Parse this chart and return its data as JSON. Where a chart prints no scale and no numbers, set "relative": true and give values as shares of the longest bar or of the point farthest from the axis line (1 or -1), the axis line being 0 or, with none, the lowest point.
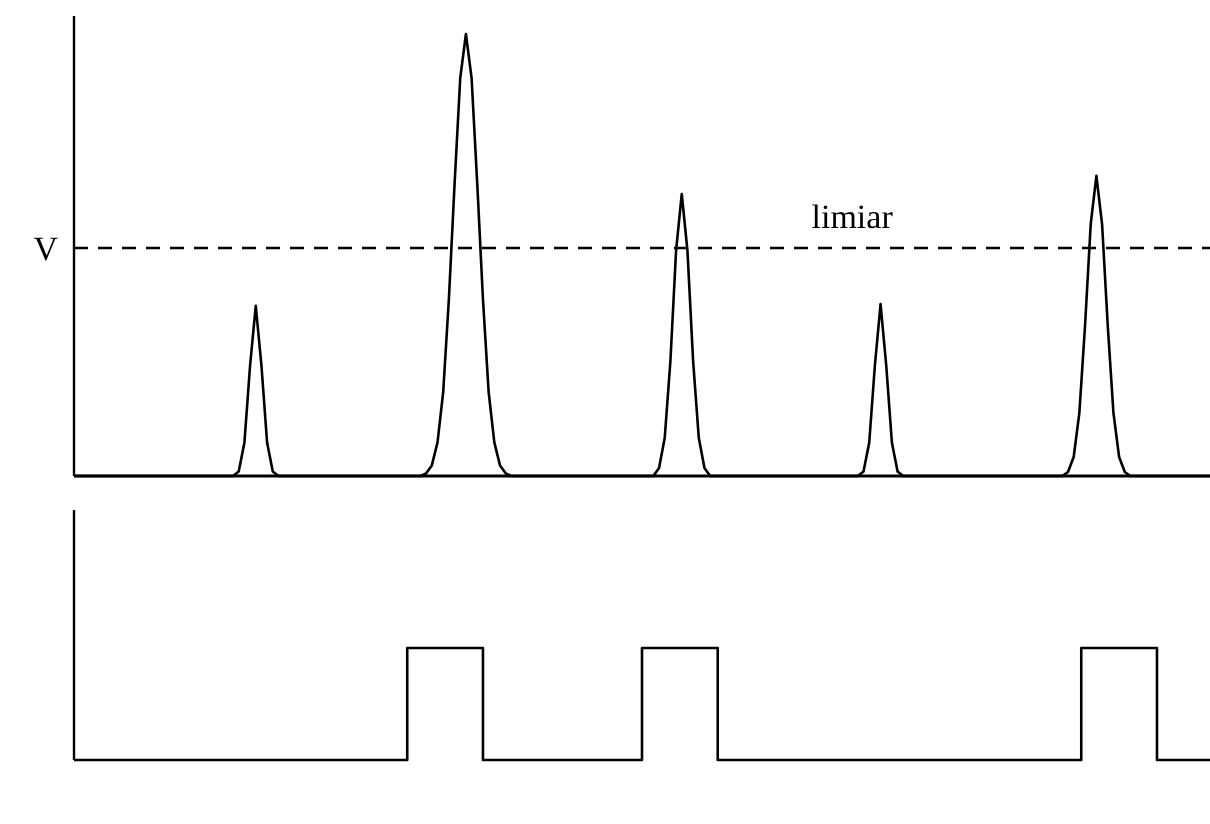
{
  "chart_data": [
    {
      "type": "line",
      "relative": true,
      "categories": [
        null,
        null,
        null,
        null,
        null,
        null,
        null,
        null,
        null,
        null,
        null,
        null,
        null,
        null,
        null,
        null,
        null,
        null,
        null,
        null,
        null,
        null,
        null,
        null,
        null,
        null,
        null,
        null,
        null,
        null,
        null,
        null,
        null,
        null,
        null,
        null,
        null,
        null,
        null,
        null,
        null,
        null,
        null,
        null,
        null,
        null,
        null,
        null,
        null,
        null,
        null,
        null,
        null,
        null,
        null,
        null,
        null,
        null,
        null,
        null,
        null,
        null,
        null,
        null,
        null,
        null,
        null,
        null,
        null,
        null,
        null,
        null,
        null,
        null,
        null,
        null,
        null,
        null,
        null,
        null,
        null,
        null,
        null,
        null,
        null,
        null,
        null,
        null,
        null,
        null,
        null,
        null,
        null,
        null,
        null,
        null,
        null,
        null,
        null,
        null,
        null,
        null,
        null,
        null,
        null,
        null,
        null,
        null,
        null,
        null,
        null,
        null,
        null,
        null,
        null,
        null,
        null,
        null,
        null,
        null,
        null,
        null,
        null,
        null,
        null,
        null,
        null,
        null,
        null,
        null,
        null,
        null,
        null,
        null,
        null,
        null,
        null,
        null,
        null,
        null,
        null,
        null,
        null,
        null,
        null,
        null,
        null,
        null,
        null,
        null,
        null,
        null,
        null,
        null,
        null,
        null,
        null,
        null,
        null,
        null,
        null,
        null,
        null,
        null,
        null,
        null,
        null,
        null,
        null,
        null,
        null,
        null,
        null,
        null,
        null,
        null,
        null,
        null,
        null,
        null,
        null,
        null,
        null,
        null,
        null,
        null,
        null,
        null,
        null,
        null,
        null,
        null,
        null,
        null,
        null,
        null,
        null,
        null,
        null,
        null,
        null
      ],
      "series": [
        {
          "color": "#000000",
          "values": [
            0,
            0,
            0,
            0,
            0,
            0,
            0,
            0,
            0,
            0,
            0,
            0,
            0,
            0,
            0,
            0,
            0,
            0,
            0,
            0,
            0,
            0,
            0,
            0,
            0,
            0,
            0,
            0,
            0,
            0.01,
            0.075,
            0.25,
            0.385,
            0.25,
            0.075,
            0.01,
            0,
            0,
            0,
            0,
            0,
            0,
            0,
            0,
            0,
            0,
            0,
            0,
            0,
            0,
            0,
            0,
            0,
            0,
            0,
            0,
            0,
            0,
            0,
            0,
            0,
            0,
            0.006,
            0.024,
            0.076,
            0.19,
            0.4,
            0.66,
            0.9,
            1,
            0.9,
            0.66,
            0.4,
            0.19,
            0.076,
            0.024,
            0.006,
            0,
            0,
            0,
            0,
            0,
            0,
            0,
            0,
            0,
            0,
            0,
            0,
            0,
            0,
            0,
            0,
            0,
            0,
            0,
            0,
            0,
            0,
            0,
            0,
            0,
            0,
            0.018,
            0.086,
            0.26,
            0.51,
            0.638,
            0.51,
            0.26,
            0.086,
            0.018,
            0,
            0,
            0,
            0,
            0,
            0,
            0,
            0,
            0,
            0,
            0,
            0,
            0,
            0,
            0,
            0,
            0,
            0,
            0,
            0,
            0,
            0,
            0,
            0,
            0,
            0,
            0,
            0.01,
            0.075,
            0.25,
            0.389,
            0.25,
            0.075,
            0.01,
            0,
            0,
            0,
            0,
            0,
            0,
            0,
            0,
            0,
            0,
            0,
            0,
            0,
            0,
            0,
            0,
            0,
            0,
            0,
            0,
            0,
            0,
            0,
            0,
            0,
            0,
            0,
            0,
            0,
            0.009,
            0.043,
            0.143,
            0.34,
            0.57,
            0.679,
            0.57,
            0.34,
            0.143,
            0.043,
            0.009,
            0,
            0,
            0,
            0,
            0,
            0,
            0,
            0,
            0,
            0,
            0,
            0,
            0,
            0,
            0
          ]
        }
      ],
      "ref_lines": [
        {
          "axis": "y",
          "value": 0.516,
          "label": "V",
          "line_style": "dashed",
          "color": "#000000"
        }
      ],
      "annotations": [
        {
          "text": "limiar",
          "y": 0.516
        }
      ]
    },
    {
      "type": "step",
      "relative": true,
      "categories": [
        null,
        null,
        null,
        null,
        null,
        null,
        null,
        null,
        null,
        null,
        null,
        null,
        null,
        null,
        null,
        null,
        null,
        null,
        null,
        null,
        null,
        null,
        null,
        null,
        null,
        null,
        null,
        null,
        null,
        null,
        null,
        null,
        null,
        null,
        null,
        null,
        null,
        null,
        null,
        null,
        null,
        null,
        null,
        null,
        null,
        null,
        null,
        null,
        null,
        null,
        null,
        null,
        null,
        null,
        null,
        null,
        null,
        null,
        null,
        null,
        null,
        null,
        null,
        null,
        null,
        null,
        null,
        null,
        null,
        null,
        null,
        null,
        null,
        null,
        null,
        null,
        null,
        null,
        null,
        null,
        null,
        null,
        null,
        null,
        null,
        null,
        null,
        null,
        null,
        null,
        null,
        null,
        null,
        null,
        null,
        null,
        null,
        null,
        null,
        null,
        null,
        null,
        null,
        null,
        null,
        null,
        null,
        null,
        null,
        null,
        null,
        null,
        null,
        null,
        null,
        null,
        null,
        null,
        null,
        null,
        null,
        null,
        null,
        null,
        null,
        null,
        null,
        null,
        null,
        null,
        null,
        null,
        null,
        null,
        null,
        null,
        null,
        null,
        null,
        null,
        null,
        null,
        null,
        null,
        null,
        null,
        null,
        null,
        null,
        null,
        null
      ],
      "series": [
        {
          "color": "#000000",
          "values": [
            0,
            0,
            0,
            0,
            0,
            0,
            0,
            0,
            0,
            0,
            0,
            0,
            0,
            0,
            0,
            0,
            0,
            0,
            0,
            0,
            0,
            0,
            0,
            0,
            0,
            0,
            0,
            0,
            0,
            0,
            0,
            0,
            0,
            0,
            0,
            0,
            0,
            0,
            0,
            0,
            0,
            0,
            0,
            0,
            1,
            1,
            1,
            1,
            1,
            1,
            1,
            1,
            1,
            1,
            0,
            0,
            0,
            0,
            0,
            0,
            0,
            0,
            0,
            0,
            0,
            0,
            0,
            0,
            0,
            0,
            0,
            0,
            0,
            0,
            0,
            1,
            1,
            1,
            1,
            1,
            1,
            1,
            1,
            1,
            1,
            0,
            0,
            0,
            0,
            0,
            0,
            0,
            0,
            0,
            0,
            0,
            0,
            0,
            0,
            0,
            0,
            0,
            0,
            0,
            0,
            0,
            0,
            0,
            0,
            0,
            0,
            0,
            0,
            0,
            0,
            0,
            0,
            0,
            0,
            0,
            0,
            0,
            0,
            0,
            0,
            0,
            0,
            0,
            0,
            0,
            0,
            0,
            0,
            1,
            1,
            1,
            1,
            1,
            1,
            1,
            1,
            1,
            1,
            0,
            0,
            0,
            0,
            0,
            0,
            0,
            0
          ]
        }
      ]
    }
  ]
}
